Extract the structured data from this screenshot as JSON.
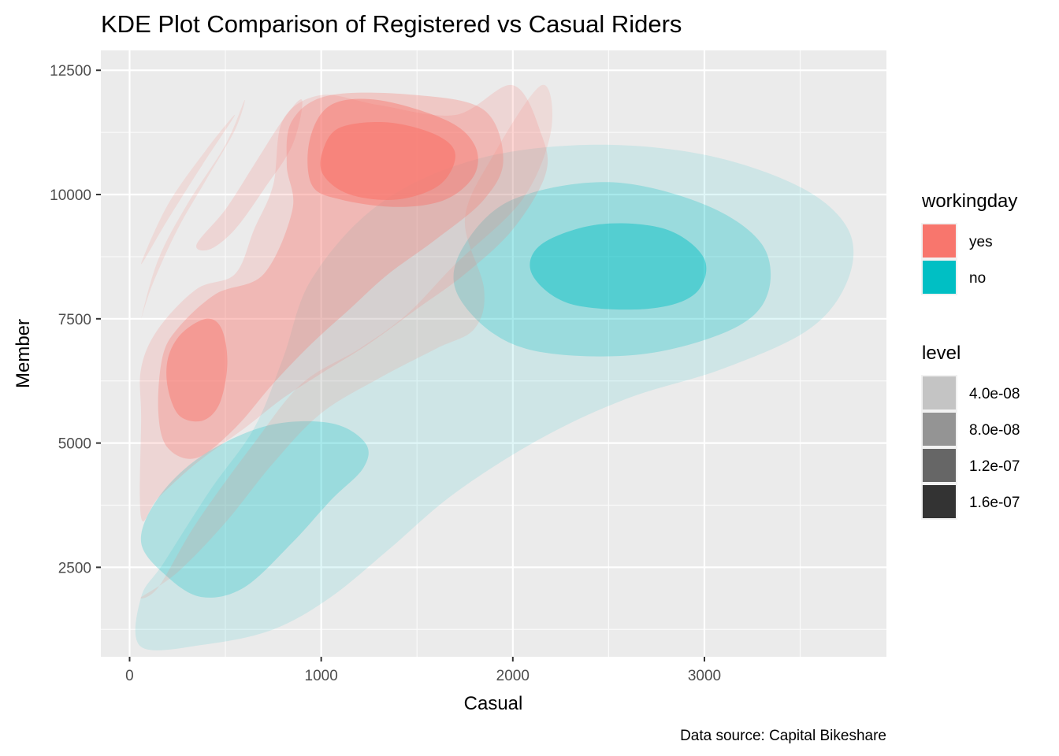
{
  "chart_data": {
    "type": "kde-contour",
    "title": "KDE Plot Comparison of Registered vs Casual Riders",
    "xlabel": "Casual",
    "ylabel": "Member",
    "caption": "Data source: Capital Bikeshare",
    "xlim": [
      -150,
      3950
    ],
    "ylim": [
      700,
      12900
    ],
    "x_ticks": [
      0,
      1000,
      2000,
      3000
    ],
    "y_ticks": [
      2500,
      5000,
      7500,
      10000,
      12500
    ],
    "x_minor": [
      500,
      1500,
      2500,
      3500
    ],
    "y_minor": [
      3750,
      6250,
      8750,
      11250,
      1250
    ],
    "grid": true,
    "legend_placement": "right",
    "fill_legend": {
      "title": "workingday",
      "entries": [
        {
          "label": "yes",
          "color": "#F8766D"
        },
        {
          "label": "no",
          "color": "#00BFC4"
        }
      ]
    },
    "level_legend": {
      "title": "level",
      "entries": [
        {
          "label": "4.0e-08",
          "color": "#c4c4c4"
        },
        {
          "label": "8.0e-08",
          "color": "#949494"
        },
        {
          "label": "1.2e-07",
          "color": "#666666"
        },
        {
          "label": "1.6e-07",
          "color": "#333333"
        }
      ]
    },
    "series": [
      {
        "group": "no",
        "color": "#00BFC4",
        "level": "4.0e-08",
        "opacity": 0.12,
        "polygon": [
          [
            60,
            900
          ],
          [
            400,
            950
          ],
          [
            750,
            1250
          ],
          [
            1050,
            1900
          ],
          [
            1350,
            2850
          ],
          [
            1700,
            4000
          ],
          [
            2150,
            5100
          ],
          [
            2600,
            5900
          ],
          [
            3100,
            6500
          ],
          [
            3550,
            7300
          ],
          [
            3750,
            8300
          ],
          [
            3750,
            9300
          ],
          [
            3500,
            10150
          ],
          [
            3000,
            10800
          ],
          [
            2400,
            11000
          ],
          [
            1800,
            10700
          ],
          [
            1300,
            9800
          ],
          [
            950,
            8300
          ],
          [
            800,
            6700
          ],
          [
            650,
            5300
          ],
          [
            420,
            4050
          ],
          [
            180,
            2600
          ],
          [
            60,
            1900
          ]
        ]
      },
      {
        "group": "no",
        "color": "#00BFC4",
        "level": "8.0e-08",
        "opacity": 0.25,
        "polygon": [
          [
            60,
            3000
          ],
          [
            200,
            2300
          ],
          [
            380,
            1900
          ],
          [
            600,
            2100
          ],
          [
            850,
            3000
          ],
          [
            1050,
            3850
          ],
          [
            1220,
            4500
          ],
          [
            1230,
            5000
          ],
          [
            1050,
            5400
          ],
          [
            720,
            5350
          ],
          [
            380,
            4750
          ],
          [
            150,
            3900
          ]
        ]
      },
      {
        "group": "no",
        "color": "#00BFC4",
        "level": "8.0e-08",
        "opacity": 0.25,
        "polygon": [
          [
            1700,
            8100
          ],
          [
            1900,
            7200
          ],
          [
            2200,
            6800
          ],
          [
            2700,
            6800
          ],
          [
            3150,
            7300
          ],
          [
            3330,
            8000
          ],
          [
            3300,
            9000
          ],
          [
            3000,
            9800
          ],
          [
            2500,
            10250
          ],
          [
            2000,
            9900
          ],
          [
            1750,
            9000
          ]
        ]
      },
      {
        "group": "no",
        "color": "#00BFC4",
        "level": "1.2e-07",
        "opacity": 0.45,
        "polygon": [
          [
            2100,
            8400
          ],
          [
            2300,
            7800
          ],
          [
            2700,
            7700
          ],
          [
            2950,
            8000
          ],
          [
            3000,
            8700
          ],
          [
            2800,
            9300
          ],
          [
            2450,
            9400
          ],
          [
            2150,
            9000
          ]
        ]
      },
      {
        "group": "yes",
        "color": "#F8766D",
        "level": "4.0e-08",
        "opacity": 0.15,
        "polygon": [
          [
            60,
            1900
          ],
          [
            250,
            2400
          ],
          [
            500,
            3400
          ],
          [
            750,
            4600
          ],
          [
            1000,
            5600
          ],
          [
            1300,
            6300
          ],
          [
            1600,
            6900
          ],
          [
            1800,
            7300
          ],
          [
            1850,
            8100
          ],
          [
            1750,
            9500
          ],
          [
            1900,
            10800
          ],
          [
            2150,
            12200
          ],
          [
            2200,
            11300
          ],
          [
            2050,
            9900
          ],
          [
            1700,
            8600
          ],
          [
            1450,
            7600
          ],
          [
            1200,
            6900
          ],
          [
            900,
            6200
          ],
          [
            650,
            5000
          ],
          [
            350,
            3400
          ],
          [
            150,
            2100
          ]
        ]
      },
      {
        "group": "yes",
        "color": "#F8766D",
        "level": "4.0e-08",
        "opacity": 0.18,
        "polygon": [
          [
            60,
            5500
          ],
          [
            60,
            3500
          ],
          [
            150,
            3900
          ],
          [
            350,
            4600
          ],
          [
            600,
            5300
          ],
          [
            800,
            5900
          ],
          [
            1000,
            6400
          ],
          [
            1250,
            7000
          ],
          [
            1500,
            7700
          ],
          [
            1750,
            8400
          ],
          [
            2000,
            9300
          ],
          [
            2170,
            10400
          ],
          [
            2150,
            11200
          ],
          [
            2000,
            12200
          ],
          [
            1700,
            11600
          ],
          [
            1300,
            11800
          ],
          [
            1000,
            12000
          ],
          [
            800,
            11500
          ],
          [
            750,
            10200
          ],
          [
            650,
            9300
          ],
          [
            550,
            8400
          ],
          [
            350,
            8100
          ],
          [
            150,
            7300
          ],
          [
            60,
            6500
          ]
        ]
      },
      {
        "group": "yes",
        "color": "#F8766D",
        "level": "8.0e-08",
        "opacity": 0.3,
        "polygon": [
          [
            150,
            5600
          ],
          [
            200,
            4900
          ],
          [
            350,
            4700
          ],
          [
            550,
            5300
          ],
          [
            750,
            6200
          ],
          [
            950,
            7000
          ],
          [
            1150,
            7700
          ],
          [
            1350,
            8400
          ],
          [
            1600,
            9100
          ],
          [
            1850,
            9900
          ],
          [
            1950,
            10700
          ],
          [
            1850,
            11700
          ],
          [
            1500,
            12000
          ],
          [
            1050,
            12000
          ],
          [
            850,
            11500
          ],
          [
            820,
            10600
          ],
          [
            850,
            9700
          ],
          [
            700,
            8400
          ],
          [
            450,
            8000
          ],
          [
            250,
            7300
          ],
          [
            170,
            6700
          ]
        ]
      },
      {
        "group": "yes",
        "color": "#F8766D",
        "level": "1.2e-07",
        "opacity": 0.45,
        "polygon": [
          [
            200,
            6100
          ],
          [
            260,
            5550
          ],
          [
            380,
            5450
          ],
          [
            470,
            5800
          ],
          [
            510,
            6600
          ],
          [
            480,
            7300
          ],
          [
            400,
            7500
          ],
          [
            270,
            7200
          ],
          [
            200,
            6700
          ]
        ]
      },
      {
        "group": "yes",
        "color": "#F8766D",
        "level": "1.2e-07",
        "opacity": 0.45,
        "polygon": [
          [
            950,
            10200
          ],
          [
            1100,
            9900
          ],
          [
            1400,
            9750
          ],
          [
            1650,
            9900
          ],
          [
            1800,
            10400
          ],
          [
            1800,
            11000
          ],
          [
            1650,
            11500
          ],
          [
            1300,
            11900
          ],
          [
            1050,
            11800
          ],
          [
            940,
            11100
          ]
        ]
      },
      {
        "group": "yes",
        "color": "#F8766D",
        "level": "1.6e-07",
        "opacity": 0.6,
        "polygon": [
          [
            1010,
            10400
          ],
          [
            1150,
            10000
          ],
          [
            1400,
            9900
          ],
          [
            1620,
            10200
          ],
          [
            1700,
            10800
          ],
          [
            1600,
            11200
          ],
          [
            1350,
            11450
          ],
          [
            1100,
            11350
          ],
          [
            1010,
            10900
          ]
        ]
      },
      {
        "group": "yes",
        "color": "#F8766D",
        "level": "4.0e-08",
        "opacity": 0.15,
        "polygon": [
          [
            60,
            7500
          ],
          [
            150,
            8700
          ],
          [
            300,
            9800
          ],
          [
            500,
            11000
          ],
          [
            600,
            11900
          ],
          [
            550,
            11300
          ],
          [
            400,
            10300
          ],
          [
            250,
            9300
          ],
          [
            120,
            8200
          ]
        ]
      },
      {
        "group": "yes",
        "color": "#F8766D",
        "level": "4.0e-08",
        "opacity": 0.15,
        "polygon": [
          [
            60,
            8600
          ],
          [
            200,
            9800
          ],
          [
            400,
            10900
          ],
          [
            550,
            11600
          ],
          [
            380,
            10600
          ],
          [
            200,
            9500
          ]
        ]
      },
      {
        "group": "yes",
        "color": "#F8766D",
        "level": "4.0e-08",
        "opacity": 0.18,
        "polygon": [
          [
            350,
            9000
          ],
          [
            500,
            9700
          ],
          [
            650,
            10600
          ],
          [
            800,
            11500
          ],
          [
            900,
            11900
          ],
          [
            850,
            11000
          ],
          [
            700,
            10100
          ],
          [
            550,
            9300
          ],
          [
            420,
            8900
          ]
        ]
      }
    ]
  }
}
